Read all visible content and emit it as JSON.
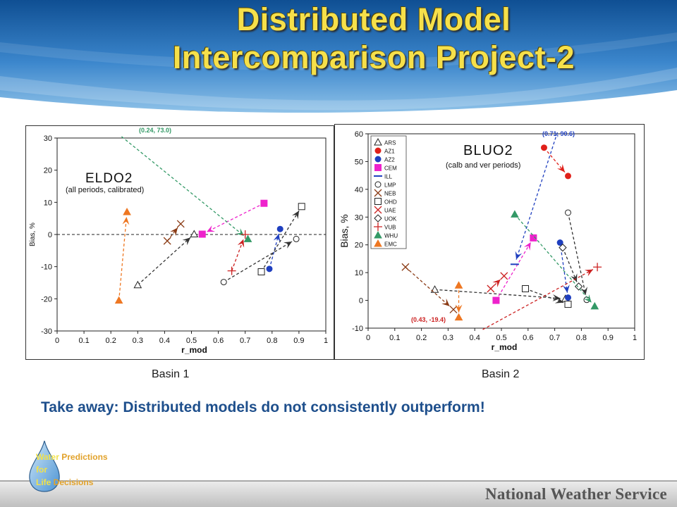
{
  "slide": {
    "title_line1": "Distributed Model",
    "title_line2": "Intercomparison Project-2",
    "basin1_caption": "Basin 1",
    "basin2_caption": "Basin 2",
    "takeaway": "Take away: Distributed models do not consistently outperform!",
    "logo": {
      "w1": "Water",
      "w1b": " Predictions",
      "w2": "for",
      "w3": "Life",
      "w3b": " Decisions"
    },
    "footer": "National Weather Service",
    "colors": {
      "title": "#f6e04a",
      "takeaway": "#1e4f8c",
      "background_top": "#3b7fc4"
    }
  },
  "chart_data": [
    {
      "type": "scatter",
      "title": "ELDO2",
      "subtitle": "(all periods, calibrated)",
      "xlabel": "r_mod",
      "ylabel": "Bias, %",
      "xlim": [
        0,
        1
      ],
      "ylim": [
        -30,
        30
      ],
      "xticks": [
        "0",
        "0.1",
        "0.2",
        "0.3",
        "0.4",
        "0.5",
        "0.6",
        "0.7",
        "0.8",
        "0.9",
        "1"
      ],
      "yticks": [
        "30",
        "20",
        "10",
        "0",
        "-10",
        "-20",
        "-30"
      ],
      "reference_line_y": 0,
      "annotations": [
        {
          "text": "(0.24, 73.0)",
          "x": 0.24,
          "y": 73.0
        }
      ],
      "series": [
        {
          "marker": "triangle-open",
          "color": "#222222",
          "from": [
            0.3,
            -15.7
          ],
          "to": [
            0.51,
            0.1
          ]
        },
        {
          "marker": "cross",
          "color": "#8a3a14",
          "from": [
            0.41,
            -2.0
          ],
          "to": [
            0.46,
            3.3
          ]
        },
        {
          "marker": "square",
          "color": "#ee22cc",
          "from": [
            0.77,
            9.7
          ],
          "to": [
            0.54,
            0.1
          ]
        },
        {
          "marker": "triangle",
          "color": "#ee7722",
          "from": [
            0.23,
            -20.5
          ],
          "to": [
            0.26,
            7.0
          ]
        },
        {
          "marker": "triangle",
          "color": "#339966",
          "from": [
            0.24,
            73.0
          ],
          "to": [
            0.71,
            -1.4
          ]
        },
        {
          "marker": "plus",
          "color": "#cc2222",
          "from": [
            0.65,
            -11.3
          ],
          "to": [
            0.7,
            0.0
          ]
        },
        {
          "marker": "circle",
          "color": "#1f3fbf",
          "from": [
            0.79,
            -10.7
          ],
          "to": [
            0.83,
            1.7
          ]
        },
        {
          "marker": "square-open",
          "color": "#222222",
          "from": [
            0.76,
            -11.6
          ],
          "to": [
            0.91,
            8.7
          ]
        },
        {
          "marker": "circle-open",
          "color": "#222222",
          "from": [
            0.62,
            -14.8
          ],
          "to": [
            0.89,
            -1.4
          ]
        }
      ]
    },
    {
      "type": "scatter",
      "title": "BLUO2",
      "subtitle": "(calb and ver periods)",
      "xlabel": "r_mod",
      "ylabel": "Bias, %",
      "xlim": [
        0,
        1
      ],
      "ylim": [
        -10,
        60
      ],
      "xticks": [
        "0",
        "0.1",
        "0.2",
        "0.3",
        "0.4",
        "0.5",
        "0.6",
        "0.7",
        "0.8",
        "0.9",
        "1"
      ],
      "yticks": [
        "60",
        "50",
        "40",
        "30",
        "20",
        "10",
        "0",
        "-10"
      ],
      "annotations": [
        {
          "text": "(0.71, 90.6)",
          "x": 0.71,
          "y": 90.6
        },
        {
          "text": "(0.43, -19.4)",
          "x": 0.43,
          "y": -19.4
        }
      ],
      "legend": {
        "position": "top-left",
        "entries": [
          {
            "label": "ARS",
            "marker": "triangle-open",
            "color": "#222222"
          },
          {
            "label": "AZ1",
            "marker": "circle",
            "color": "#e0201a"
          },
          {
            "label": "AZ2",
            "marker": "circle",
            "color": "#1f3fbf"
          },
          {
            "label": "CEM",
            "marker": "square",
            "color": "#ee22cc"
          },
          {
            "label": "ILL",
            "marker": "dash",
            "color": "#1f3fbf"
          },
          {
            "label": "LMP",
            "marker": "circle-open",
            "color": "#222222"
          },
          {
            "label": "NEB",
            "marker": "cross",
            "color": "#8a3a14"
          },
          {
            "label": "OHD",
            "marker": "square-open",
            "color": "#222222"
          },
          {
            "label": "UAE",
            "marker": "cross",
            "color": "#cc2222"
          },
          {
            "label": "UOK",
            "marker": "diamond-open",
            "color": "#222222"
          },
          {
            "label": "VUB",
            "marker": "plus",
            "color": "#cc2222"
          },
          {
            "label": "WHU",
            "marker": "triangle",
            "color": "#339966"
          },
          {
            "label": "EMC",
            "marker": "triangle",
            "color": "#ee7722"
          }
        ]
      },
      "series": [
        {
          "name": "ARS",
          "from": [
            0.25,
            3.9
          ],
          "to": [
            0.74,
            0.6
          ]
        },
        {
          "name": "AZ1",
          "from": [
            0.66,
            55.0
          ],
          "to": [
            0.75,
            44.8
          ]
        },
        {
          "name": "AZ2",
          "from": [
            0.72,
            20.8
          ],
          "to": [
            0.75,
            1.0
          ]
        },
        {
          "name": "CEM",
          "from": [
            0.48,
            0.0
          ],
          "to": [
            0.62,
            22.5
          ]
        },
        {
          "name": "ILL",
          "from": [
            0.71,
            90.6
          ],
          "to": [
            0.55,
            13.0
          ]
        },
        {
          "name": "LMP",
          "from": [
            0.75,
            31.6
          ],
          "to": [
            0.82,
            0.2
          ]
        },
        {
          "name": "NEB",
          "from": [
            0.14,
            12.0
          ],
          "to": [
            0.32,
            -3.3
          ]
        },
        {
          "name": "OHD",
          "from": [
            0.59,
            4.2
          ],
          "to": [
            0.75,
            -1.4
          ]
        },
        {
          "name": "UAE",
          "from": [
            0.46,
            4.2
          ],
          "to": [
            0.51,
            8.8
          ]
        },
        {
          "name": "UOK",
          "from": [
            0.73,
            19.0
          ],
          "to": [
            0.79,
            5.0
          ]
        },
        {
          "name": "VUB",
          "from": [
            0.43,
            -19.4
          ],
          "to": [
            0.86,
            12.0
          ]
        },
        {
          "name": "WHU",
          "from": [
            0.55,
            31.0
          ],
          "to": [
            0.85,
            -2.1
          ]
        },
        {
          "name": "EMC",
          "from": [
            0.34,
            5.4
          ],
          "to": [
            0.34,
            -6.1
          ]
        }
      ]
    }
  ]
}
